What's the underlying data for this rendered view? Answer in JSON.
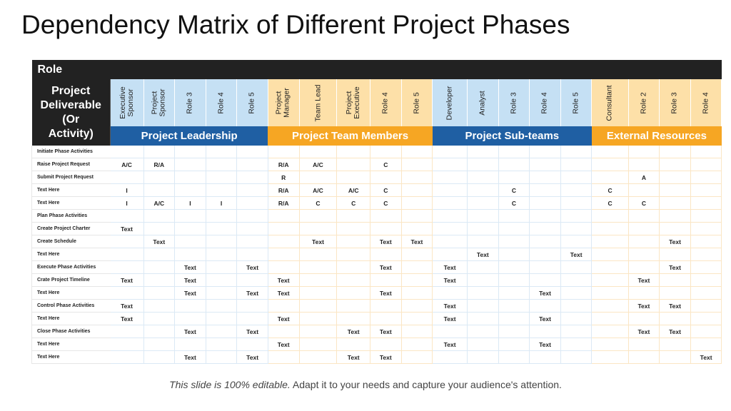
{
  "title": "Dependency Matrix of Different Project Phases",
  "role_label": "Role",
  "deliverable_label": [
    "Project",
    "Deliverable",
    "(Or",
    "Activity)"
  ],
  "groups": [
    {
      "name": "Project Leadership",
      "key": "lead",
      "columns": [
        "Executive\nSponsor",
        "Project\nSponsor",
        "Role 3",
        "Role 4",
        "Role 5"
      ]
    },
    {
      "name": "Project Team Members",
      "key": "team",
      "columns": [
        "Project\nManager",
        "Team Lead",
        "Project\nExecutive",
        "Role 4",
        "Role 5"
      ]
    },
    {
      "name": "Project Sub-teams",
      "key": "sub",
      "columns": [
        "Developer",
        "Analyst",
        "Role 3",
        "Role 4",
        "Role 5"
      ]
    },
    {
      "name": "External Resources",
      "key": "ext",
      "columns": [
        "Consultant",
        "Role 2",
        "Role 3",
        "Role 4"
      ]
    }
  ],
  "rows": [
    {
      "task": "Initiate Phase Activities",
      "cells": [
        "",
        "",
        "",
        "",
        "",
        "",
        "",
        "",
        "",
        "",
        "",
        "",
        "",
        "",
        "",
        "",
        "",
        "",
        ""
      ]
    },
    {
      "task": "Raise Project Request",
      "cells": [
        "A/C",
        "R/A",
        "",
        "",
        "",
        "R/A",
        "A/C",
        "",
        "C",
        "",
        "",
        "",
        "",
        "",
        "",
        "",
        "",
        "",
        ""
      ]
    },
    {
      "task": "Submit Project Request",
      "cells": [
        "",
        "",
        "",
        "",
        "",
        "R",
        "",
        "",
        "",
        "",
        "",
        "",
        "",
        "",
        "",
        "",
        "A",
        "",
        ""
      ]
    },
    {
      "task": "Text Here",
      "cells": [
        "I",
        "",
        "",
        "",
        "",
        "R/A",
        "A/C",
        "A/C",
        "C",
        "",
        "",
        "",
        "C",
        "",
        "",
        "C",
        "",
        "",
        ""
      ]
    },
    {
      "task": "Text Here",
      "cells": [
        "I",
        "A/C",
        "I",
        "I",
        "",
        "R/A",
        "C",
        "C",
        "C",
        "",
        "",
        "",
        "C",
        "",
        "",
        "C",
        "C",
        "",
        ""
      ]
    },
    {
      "task": "Plan Phase Activities",
      "cells": [
        "",
        "",
        "",
        "",
        "",
        "",
        "",
        "",
        "",
        "",
        "",
        "",
        "",
        "",
        "",
        "",
        "",
        "",
        ""
      ]
    },
    {
      "task": "Create Project Charter",
      "cells": [
        "Text",
        "",
        "",
        "",
        "",
        "",
        "",
        "",
        "",
        "",
        "",
        "",
        "",
        "",
        "",
        "",
        "",
        "",
        ""
      ]
    },
    {
      "task": "Create Schedule",
      "cells": [
        "",
        "Text",
        "",
        "",
        "",
        "",
        "Text",
        "",
        "Text",
        "Text",
        "",
        "",
        "",
        "",
        "",
        "",
        "",
        "Text",
        ""
      ]
    },
    {
      "task": "Text Here",
      "cells": [
        "",
        "",
        "",
        "",
        "",
        "",
        "",
        "",
        "",
        "",
        "",
        "Text",
        "",
        "",
        "Text",
        "",
        "",
        "",
        ""
      ]
    },
    {
      "task": "Execute Phase Activities",
      "cells": [
        "",
        "",
        "Text",
        "",
        "Text",
        "",
        "",
        "",
        "Text",
        "",
        "Text",
        "",
        "",
        "",
        "",
        "",
        "",
        "Text",
        ""
      ]
    },
    {
      "task": "Crate Project Timeline",
      "cells": [
        "Text",
        "",
        "Text",
        "",
        "",
        "Text",
        "",
        "",
        "",
        "",
        "Text",
        "",
        "",
        "",
        "",
        "",
        "Text",
        "",
        ""
      ]
    },
    {
      "task": "Text Here",
      "cells": [
        "",
        "",
        "Text",
        "",
        "Text",
        "Text",
        "",
        "",
        "Text",
        "",
        "",
        "",
        "",
        "Text",
        "",
        "",
        "",
        "",
        ""
      ]
    },
    {
      "task": "Control Phase Activities",
      "cells": [
        "Text",
        "",
        "",
        "",
        "",
        "",
        "",
        "",
        "",
        "",
        "Text",
        "",
        "",
        "",
        "",
        "",
        "Text",
        "Text",
        ""
      ]
    },
    {
      "task": "Text Here",
      "cells": [
        "Text",
        "",
        "",
        "",
        "",
        "Text",
        "",
        "",
        "",
        "",
        "Text",
        "",
        "",
        "Text",
        "",
        "",
        "",
        "",
        ""
      ]
    },
    {
      "task": "Close Phase Activities",
      "cells": [
        "",
        "",
        "Text",
        "",
        "Text",
        "",
        "",
        "Text",
        "Text",
        "",
        "",
        "",
        "",
        "",
        "",
        "",
        "Text",
        "Text",
        ""
      ]
    },
    {
      "task": "Text Here",
      "cells": [
        "",
        "",
        "",
        "",
        "",
        "Text",
        "",
        "",
        "",
        "",
        "Text",
        "",
        "",
        "Text",
        "",
        "",
        "",
        "",
        ""
      ]
    },
    {
      "task": "Text Here",
      "cells": [
        "",
        "",
        "Text",
        "",
        "Text",
        "",
        "",
        "Text",
        "Text",
        "",
        "",
        "",
        "",
        "",
        "",
        "",
        "",
        "",
        "Text"
      ]
    }
  ],
  "footer": {
    "italic": "This slide is 100% editable.",
    "rest": " Adapt it to your needs and capture your audience's attention."
  },
  "colors": {
    "dark_header": "#222222",
    "leadership_blue": "#1f5fa3",
    "light_blue": "#c5e0f4",
    "team_orange": "#f6a623",
    "light_orange": "#fde0a8"
  }
}
